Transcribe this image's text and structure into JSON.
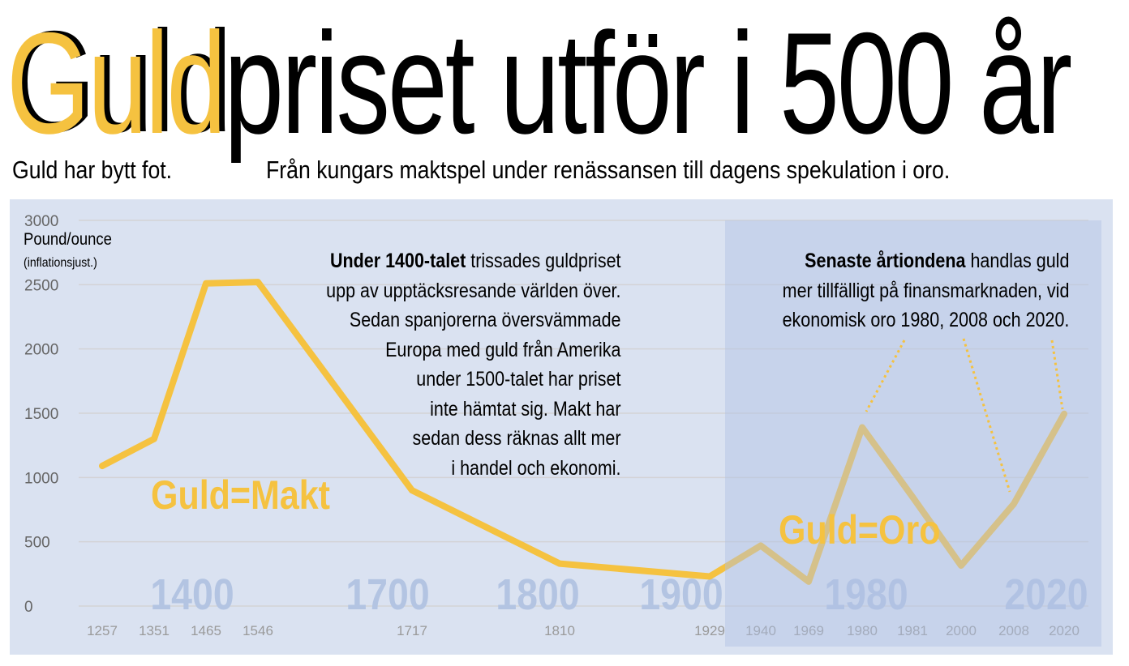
{
  "title": {
    "highlight": "Guld",
    "rest": "priset utför i 500 år"
  },
  "subtitle": {
    "left": "Guld har bytt fot.",
    "right": "Från kungars maktspel under renässansen till dagens spekulation i oro."
  },
  "notes": {
    "left": {
      "bold": "Under 1400-talet",
      "lines": [
        " trissades guldpriset",
        "upp av upptäcksresande världen över.",
        "Sedan spanjorerna översvämmade",
        "Europa med guld från Amerika",
        "under 1500-talet har priset",
        "inte hämtat sig. Makt har",
        "sedan dess räknas allt mer",
        "i handel och ekonomi."
      ]
    },
    "right": {
      "bold": "Senaste årtiondena",
      "lines": [
        " handlas guld",
        "mer tillfälligt på finansmarknaden, vid",
        "ekonomisk oro 1980, 2008 och 2020."
      ]
    }
  },
  "labels": {
    "makt": "Guld=Makt",
    "oro": "Guld=Oro"
  },
  "colors": {
    "line": "#f5c240",
    "panel": "#dae2f1",
    "shade": "#c5d2ea",
    "era": "#b3c4e2",
    "tick": "#9a9a9a"
  },
  "chart_data": {
    "type": "line",
    "title": "Guldpriset utför i 500 år",
    "ylabel": "Pound/ounce",
    "ylabel_sub": "(inflationsjust.)",
    "ylim": [
      0,
      3000
    ],
    "yticks": [
      "0",
      "500",
      "1000",
      "1500",
      "2000",
      "2500",
      "3000"
    ],
    "categories": [
      "1257",
      "1351",
      "1465",
      "1546",
      "1717",
      "1810",
      "1929",
      "1940",
      "1969",
      "1980",
      "1981",
      "2000",
      "2008",
      "2020"
    ],
    "values": [
      1090,
      1300,
      2510,
      2520,
      900,
      330,
      230,
      470,
      190,
      1390,
      850,
      315,
      795,
      1495
    ],
    "era_labels": [
      "1400",
      "1700",
      "1800",
      "1900",
      "1980",
      "2020"
    ],
    "highlight_range": [
      "1929",
      "2020"
    ],
    "grid": true
  }
}
